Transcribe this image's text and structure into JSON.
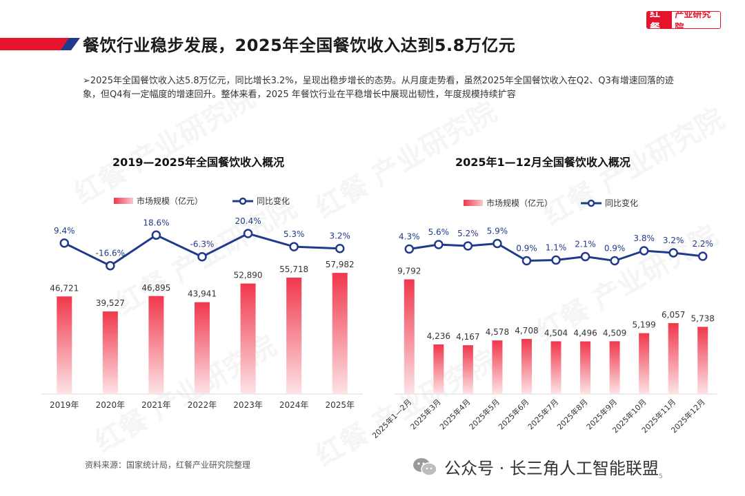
{
  "brand": {
    "mark": "红餐",
    "name": "产业研究院"
  },
  "page_title": "餐饮行业稳步发展，2025年全国餐饮收入达到5.8万亿元",
  "summary": "➢2025年全国餐饮收入达5.8万亿元，同比增长3.2%，呈现出稳步增长的态势。从月度走势看，虽然2025年全国餐饮收入在Q2、Q3有增速回落的迹象，但Q4有一定幅度的增速回升。整体来看，2025 年餐饮行业在平稳增长中展现出韧性，年度规模持续扩容",
  "watermark_text": "红餐 产业研究院",
  "colors": {
    "bar_top": "#f0384c",
    "bar_bottom": "#fde3e6",
    "line": "#1f3a8a",
    "label": "#1f3a8a",
    "brand_red": "#e3142b"
  },
  "chart_data": [
    {
      "type": "bar+line",
      "title": "2019—2025年全国餐饮收入概况",
      "legend": {
        "bar": "市场规模（亿元）",
        "line": "同比变化"
      },
      "categories": [
        "2019年",
        "2020年",
        "2021年",
        "2022年",
        "2023年",
        "2024年",
        "2025年"
      ],
      "series": [
        {
          "name": "市场规模（亿元）",
          "type": "bar",
          "values": [
            46721,
            39527,
            46895,
            43941,
            52890,
            55718,
            57982
          ],
          "labels": [
            "46,721",
            "39,527",
            "46,895",
            "43,941",
            "52,890",
            "55,718",
            "57,982"
          ]
        },
        {
          "name": "同比变化",
          "type": "line",
          "values": [
            9.4,
            -16.6,
            18.6,
            -6.3,
            20.4,
            5.3,
            3.2
          ],
          "labels": [
            "9.4%",
            "-16.6%",
            "18.6%",
            "-6.3%",
            "20.4%",
            "5.3%",
            "3.2%"
          ]
        }
      ]
    },
    {
      "type": "bar+line",
      "title": "2025年1—12月全国餐饮收入概况",
      "legend": {
        "bar": "市场规模（亿元）",
        "line": "同比变化"
      },
      "categories": [
        "2025年1—2月",
        "2025年3月",
        "2025年4月",
        "2025年5月",
        "2025年6月",
        "2025年7月",
        "2025年8月",
        "2025年9月",
        "2025年10月",
        "2025年11月",
        "2025年12月"
      ],
      "series": [
        {
          "name": "市场规模（亿元）",
          "type": "bar",
          "values": [
            9792,
            4236,
            4167,
            4578,
            4708,
            4504,
            4496,
            4509,
            5199,
            6057,
            5738
          ],
          "labels": [
            "9,792",
            "4,236",
            "4,167",
            "4,578",
            "4,708",
            "4,504",
            "4,496",
            "4,509",
            "5,199",
            "6,057",
            "5,738"
          ]
        },
        {
          "name": "同比变化",
          "type": "line",
          "values": [
            4.3,
            5.6,
            5.2,
            5.9,
            0.9,
            1.1,
            2.1,
            0.9,
            3.8,
            3.2,
            2.2
          ],
          "labels": [
            "4.3%",
            "5.6%",
            "5.2%",
            "5.9%",
            "0.9%",
            "1.1%",
            "2.1%",
            "0.9%",
            "3.8%",
            "3.2%",
            "2.2%"
          ]
        }
      ]
    }
  ],
  "source": "资料来源：国家统计局，红餐产业研究院整理",
  "wechat": "公众号 · 长三角人工智能联盟",
  "page_number": "5"
}
